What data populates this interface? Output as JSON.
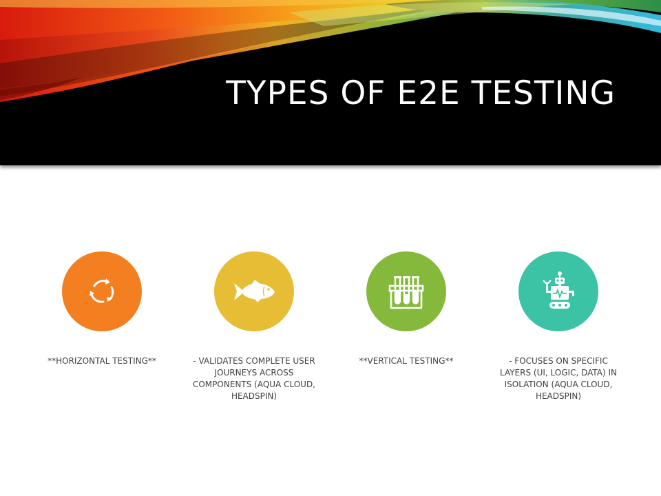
{
  "slide": {
    "title": "TYPES OF E2E TESTING"
  },
  "items": [
    {
      "icon": "refresh-cycle-icon",
      "color": "#F47F20",
      "caption": "**HORIZONTAL TESTING**"
    },
    {
      "icon": "fish-icon",
      "color": "#E7BD35",
      "caption": "- VALIDATES COMPLETE USER JOURNEYS ACROSS COMPONENTS (AQUA CLOUD, HEADSPIN)"
    },
    {
      "icon": "test-tubes-icon",
      "color": "#84B93C",
      "caption": "**VERTICAL TESTING**"
    },
    {
      "icon": "robot-icon",
      "color": "#3CC3A6",
      "caption": "- FOCUSES ON SPECIFIC LAYERS (UI, LOGIC, DATA) IN ISOLATION (AQUA CLOUD, HEADSPIN)"
    }
  ]
}
